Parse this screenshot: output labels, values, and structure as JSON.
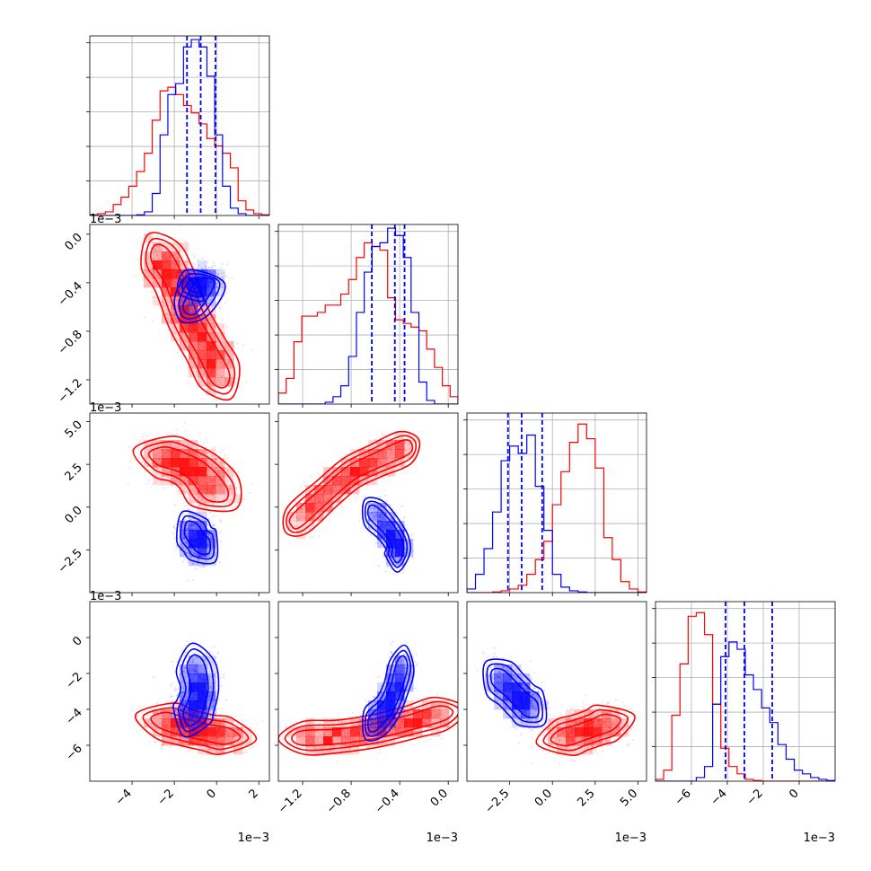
{
  "chart_data": {
    "type": "corner",
    "series": [
      {
        "name": "",
        "color": "#ff0000"
      },
      {
        "name": "",
        "color": "#0000ff"
      }
    ],
    "variables": [
      {
        "id": "p1",
        "range": [
          -6,
          2.5
        ],
        "ticks": [
          -4,
          -2,
          0,
          2
        ],
        "tick_labels": [
          "−4",
          "−2",
          "0",
          "2"
        ],
        "offset_label": "1e−3",
        "quantiles_blue": [
          -1.4,
          -0.75,
          -0.05
        ],
        "hist_red": [
          0.02,
          0.05,
          0.1,
          0.3,
          0.5,
          0.8,
          1.2,
          1.7,
          2.6,
          3.4,
          3.5,
          3.3,
          3.0,
          2.8,
          2.5,
          2.1,
          1.9,
          1.7,
          1.3,
          0.4,
          0.15,
          0.05,
          0.02
        ],
        "hist_blue": [
          0,
          0,
          0,
          0,
          0,
          0,
          0.02,
          0.1,
          0.6,
          2.2,
          3.3,
          3.6,
          4.6,
          4.8,
          4.6,
          3.8,
          2.2,
          0.8,
          0.2,
          0.05,
          0,
          0,
          0
        ]
      },
      {
        "id": "p2",
        "range": [
          -1.4,
          0.08
        ],
        "ticks": [
          -1.2,
          -0.8,
          -0.4,
          0.0
        ],
        "tick_labels": [
          "−1.2",
          "−0.8",
          "−0.4",
          "0.0"
        ],
        "offset_label": "1e−3",
        "quantiles_blue": [
          -0.63,
          -0.44,
          -0.36
        ],
        "hist_red": [
          0.3,
          0.7,
          1.7,
          2.4,
          2.4,
          2.5,
          2.7,
          2.7,
          3.0,
          3.4,
          4.0,
          4.4,
          4.3,
          4.2,
          2.9,
          2.3,
          2.2,
          2.1,
          2.0,
          1.5,
          1.0,
          0.5,
          0.2
        ],
        "hist_blue": [
          0,
          0,
          0,
          0,
          0,
          0,
          0.05,
          0.2,
          0.5,
          1.3,
          2.5,
          3.6,
          4.3,
          4.4,
          4.8,
          4.6,
          4.0,
          2.5,
          0.6,
          0.1,
          0,
          0,
          0
        ]
      },
      {
        "id": "p3",
        "range": [
          -5.0,
          5.5
        ],
        "ticks": [
          -2.5,
          0.0,
          2.5,
          5.0
        ],
        "tick_labels": [
          "−2.5",
          "0.0",
          "2.5",
          "5.0"
        ],
        "offset_label": "1e−3",
        "quantiles_blue": [
          -2.6,
          -1.8,
          -0.6
        ],
        "hist_red": [
          0,
          0,
          0,
          0.02,
          0.05,
          0.1,
          0.2,
          0.5,
          0.9,
          1.4,
          2.4,
          3.3,
          4.1,
          4.6,
          4.2,
          3.4,
          1.5,
          0.9,
          0.3,
          0.1,
          0.02
        ],
        "hist_blue": [
          0.1,
          0.5,
          1.2,
          2.2,
          3.6,
          4.0,
          3.8,
          4.3,
          2.9,
          1.7,
          0.5,
          0.15,
          0.05,
          0.02,
          0,
          0,
          0,
          0,
          0,
          0,
          0
        ]
      },
      {
        "id": "p4",
        "range": [
          -8.0,
          2.0
        ],
        "ticks": [
          -6,
          -4,
          -2,
          0
        ],
        "tick_labels": [
          "−6",
          "−4",
          "−2",
          "0"
        ],
        "offset_label": "1e−3",
        "quantiles_blue": [
          -4.1,
          -3.05,
          -1.5
        ],
        "hist_red": [
          0.05,
          0.3,
          1.8,
          3.2,
          4.5,
          4.6,
          4.0,
          2.1,
          0.9,
          0.4,
          0.2,
          0.05,
          0.02,
          0,
          0,
          0,
          0,
          0,
          0,
          0,
          0,
          0
        ],
        "hist_blue": [
          0,
          0,
          0,
          0,
          0,
          0.1,
          0.4,
          2.1,
          3.4,
          3.8,
          3.6,
          2.9,
          2.5,
          2.0,
          1.6,
          1.0,
          0.6,
          0.3,
          0.2,
          0.1,
          0.05,
          0.02
        ]
      }
    ],
    "pairs": [
      {
        "x": 0,
        "y": 1,
        "red": {
          "points": [
            [
              -2.7,
              -0.17
            ],
            [
              -2.0,
              -0.38
            ],
            [
              -1.3,
              -0.7
            ],
            [
              -0.5,
              -0.95
            ],
            [
              0.2,
              -1.18
            ]
          ],
          "sd": [
            0.5,
            0.1
          ]
        },
        "blue": {
          "points": [
            [
              -1.0,
              -0.42
            ],
            [
              -0.5,
              -0.38
            ],
            [
              -1.2,
              -0.6
            ]
          ],
          "sd": [
            0.45,
            0.07
          ]
        }
      },
      {
        "x": 0,
        "y": 2,
        "red": {
          "points": [
            [
              -2.6,
              3.0
            ],
            [
              -1.6,
              2.6
            ],
            [
              -0.8,
              2.0
            ],
            [
              0.0,
              0.8
            ]
          ],
          "sd": [
            0.7,
            0.6
          ]
        },
        "blue": {
          "points": [
            [
              -1.2,
              -1.3
            ],
            [
              -0.9,
              -1.9
            ],
            [
              -0.6,
              -2.3
            ]
          ],
          "sd": [
            0.4,
            0.6
          ]
        }
      },
      {
        "x": 1,
        "y": 2,
        "red": {
          "points": [
            [
              -1.25,
              -0.8
            ],
            [
              -1.0,
              0.8
            ],
            [
              -0.8,
              2.0
            ],
            [
              -0.6,
              2.7
            ],
            [
              -0.35,
              3.5
            ]
          ],
          "sd": [
            0.06,
            0.5
          ]
        },
        "blue": {
          "points": [
            [
              -0.62,
              -0.3
            ],
            [
              -0.5,
              -1.2
            ],
            [
              -0.42,
              -2.1
            ],
            [
              -0.42,
              -2.8
            ]
          ],
          "sd": [
            0.05,
            0.5
          ]
        }
      },
      {
        "x": 0,
        "y": 3,
        "red": {
          "points": [
            [
              -2.5,
              -4.6
            ],
            [
              -1.5,
              -5.0
            ],
            [
              -0.4,
              -5.3
            ],
            [
              0.5,
              -5.5
            ]
          ],
          "sd": [
            0.7,
            0.5
          ]
        },
        "blue": {
          "points": [
            [
              -1.0,
              -1.5
            ],
            [
              -0.8,
              -2.8
            ],
            [
              -1.0,
              -3.8
            ],
            [
              -1.2,
              -4.4
            ]
          ],
          "sd": [
            0.45,
            0.6
          ]
        }
      },
      {
        "x": 1,
        "y": 3,
        "red": {
          "points": [
            [
              -1.2,
              -5.6
            ],
            [
              -0.9,
              -5.5
            ],
            [
              -0.6,
              -5.2
            ],
            [
              -0.3,
              -4.7
            ],
            [
              -0.05,
              -4.2
            ]
          ],
          "sd": [
            0.1,
            0.45
          ]
        },
        "blue": {
          "points": [
            [
              -0.62,
              -4.8
            ],
            [
              -0.5,
              -3.9
            ],
            [
              -0.43,
              -2.8
            ],
            [
              -0.38,
              -1.5
            ]
          ],
          "sd": [
            0.05,
            0.55
          ]
        }
      },
      {
        "x": 2,
        "y": 3,
        "red": {
          "points": [
            [
              0.6,
              -5.6
            ],
            [
              1.6,
              -5.3
            ],
            [
              2.5,
              -5.0
            ],
            [
              3.3,
              -4.7
            ]
          ],
          "sd": [
            0.8,
            0.5
          ]
        },
        "blue": {
          "points": [
            [
              -3.2,
              -2.2
            ],
            [
              -2.4,
              -2.9
            ],
            [
              -1.8,
              -3.5
            ],
            [
              -1.2,
              -4.0
            ]
          ],
          "sd": [
            0.5,
            0.6
          ]
        }
      }
    ]
  }
}
